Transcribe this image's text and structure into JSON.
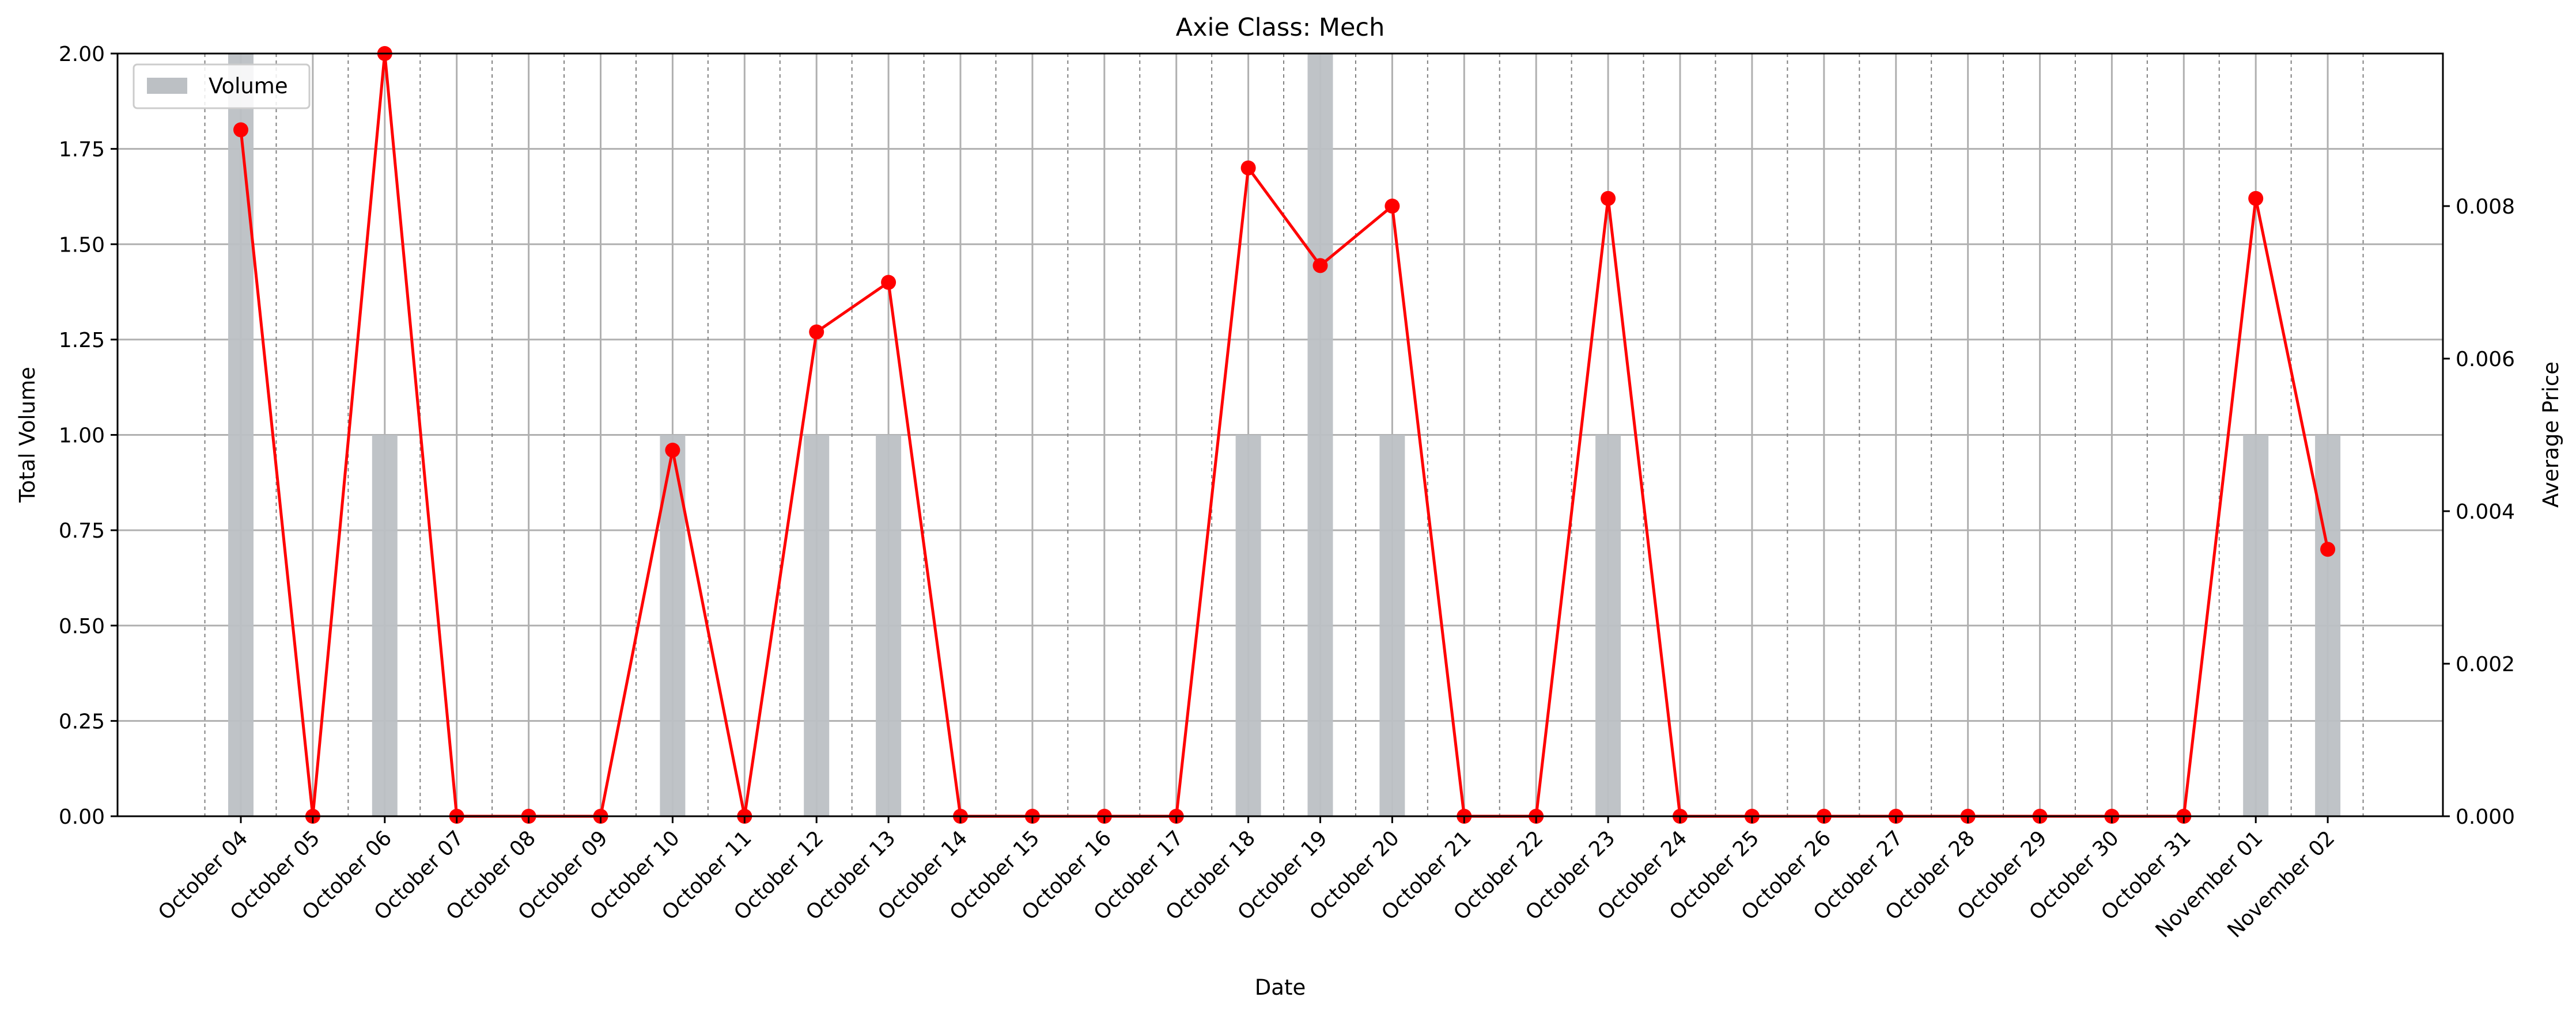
{
  "chart_data": {
    "type": "bar",
    "title": "Axie Class: Mech",
    "xlabel": "Date",
    "ylabel": "Total Volume",
    "y2label": "Average Price",
    "categories": [
      "October 04",
      "October 05",
      "October 06",
      "October 07",
      "October 08",
      "October 09",
      "October 10",
      "October 11",
      "October 12",
      "October 13",
      "October 14",
      "October 15",
      "October 16",
      "October 17",
      "October 18",
      "October 19",
      "October 20",
      "October 21",
      "October 22",
      "October 23",
      "October 24",
      "October 25",
      "October 26",
      "October 27",
      "October 28",
      "October 29",
      "October 30",
      "October 31",
      "November 01",
      "November 02"
    ],
    "series": [
      {
        "name": "Volume",
        "kind": "bar",
        "axis": "left",
        "color": "#bcc0c4",
        "values": [
          2,
          0,
          1,
          0,
          0,
          0,
          1,
          0,
          1,
          1,
          0,
          0,
          0,
          0,
          1,
          2,
          1,
          0,
          0,
          1,
          0,
          0,
          0,
          0,
          0,
          0,
          0,
          0,
          1,
          1
        ]
      },
      {
        "kind": "line",
        "axis": "right",
        "color": "#ff0000",
        "values": [
          0.009,
          0,
          0.01,
          0,
          0,
          0,
          0.0048,
          0,
          0.00635,
          0.007,
          0,
          0,
          0,
          0,
          0.0085,
          0.00722,
          0.008,
          0,
          0,
          0.0081,
          0,
          0,
          0,
          0,
          0,
          0,
          0,
          0,
          0.0081,
          0.0035
        ]
      }
    ],
    "ylim": [
      0,
      2
    ],
    "yticks": [
      "0.00",
      "0.25",
      "0.50",
      "0.75",
      "1.00",
      "1.25",
      "1.50",
      "1.75",
      "2.00"
    ],
    "y2lim": [
      0,
      0.01
    ],
    "y2ticks": [
      "0.000",
      "0.002",
      "0.004",
      "0.006",
      "0.008"
    ],
    "grid": true,
    "legend": "top-left"
  }
}
